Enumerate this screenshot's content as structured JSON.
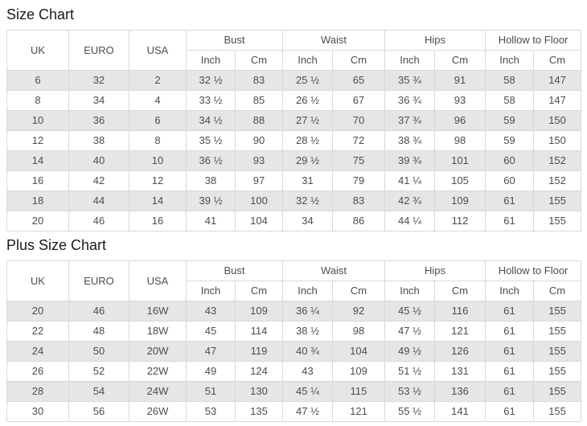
{
  "colors": {
    "border": "#d9d9d9",
    "zebra_row": "#e6e6e6",
    "cell_text": "#4d4d4d",
    "title_text": "#1a1a1a"
  },
  "size_chart": {
    "title": "Size Chart",
    "header": {
      "uk": "UK",
      "euro": "EURO",
      "usa": "USA",
      "bust": "Bust",
      "waist": "Waist",
      "hips": "Hips",
      "hollow_to_floor": "Hollow to Floor",
      "inch": "Inch",
      "cm": "Cm"
    },
    "rows": [
      [
        "6",
        "32",
        "2",
        "32 ½",
        "83",
        "25 ½",
        "65",
        "35 ¾",
        "91",
        "58",
        "147"
      ],
      [
        "8",
        "34",
        "4",
        "33 ½",
        "85",
        "26 ½",
        "67",
        "36 ¾",
        "93",
        "58",
        "147"
      ],
      [
        "10",
        "36",
        "6",
        "34 ½",
        "88",
        "27 ½",
        "70",
        "37 ¾",
        "96",
        "59",
        "150"
      ],
      [
        "12",
        "38",
        "8",
        "35 ½",
        "90",
        "28 ½",
        "72",
        "38 ¾",
        "98",
        "59",
        "150"
      ],
      [
        "14",
        "40",
        "10",
        "36 ½",
        "93",
        "29 ½",
        "75",
        "39 ¾",
        "101",
        "60",
        "152"
      ],
      [
        "16",
        "42",
        "12",
        "38",
        "97",
        "31",
        "79",
        "41 ¼",
        "105",
        "60",
        "152"
      ],
      [
        "18",
        "44",
        "14",
        "39 ½",
        "100",
        "32 ½",
        "83",
        "42 ¾",
        "109",
        "61",
        "155"
      ],
      [
        "20",
        "46",
        "16",
        "41",
        "104",
        "34",
        "86",
        "44 ¼",
        "112",
        "61",
        "155"
      ]
    ]
  },
  "plus_size_chart": {
    "title": "Plus Size Chart",
    "header": {
      "uk": "UK",
      "euro": "EURO",
      "usa": "USA",
      "bust": "Bust",
      "waist": "Waist",
      "hips": "Hips",
      "hollow_to_floor": "Hollow to Floor",
      "inch": "Inch",
      "cm": "Cm"
    },
    "rows": [
      [
        "20",
        "46",
        "16W",
        "43",
        "109",
        "36 ¼",
        "92",
        "45 ½",
        "116",
        "61",
        "155"
      ],
      [
        "22",
        "48",
        "18W",
        "45",
        "114",
        "38 ½",
        "98",
        "47 ½",
        "121",
        "61",
        "155"
      ],
      [
        "24",
        "50",
        "20W",
        "47",
        "119",
        "40 ¾",
        "104",
        "49 ½",
        "126",
        "61",
        "155"
      ],
      [
        "26",
        "52",
        "22W",
        "49",
        "124",
        "43",
        "109",
        "51 ½",
        "131",
        "61",
        "155"
      ],
      [
        "28",
        "54",
        "24W",
        "51",
        "130",
        "45 ¼",
        "115",
        "53 ½",
        "136",
        "61",
        "155"
      ],
      [
        "30",
        "56",
        "26W",
        "53",
        "135",
        "47 ½",
        "121",
        "55 ½",
        "141",
        "61",
        "155"
      ]
    ]
  }
}
